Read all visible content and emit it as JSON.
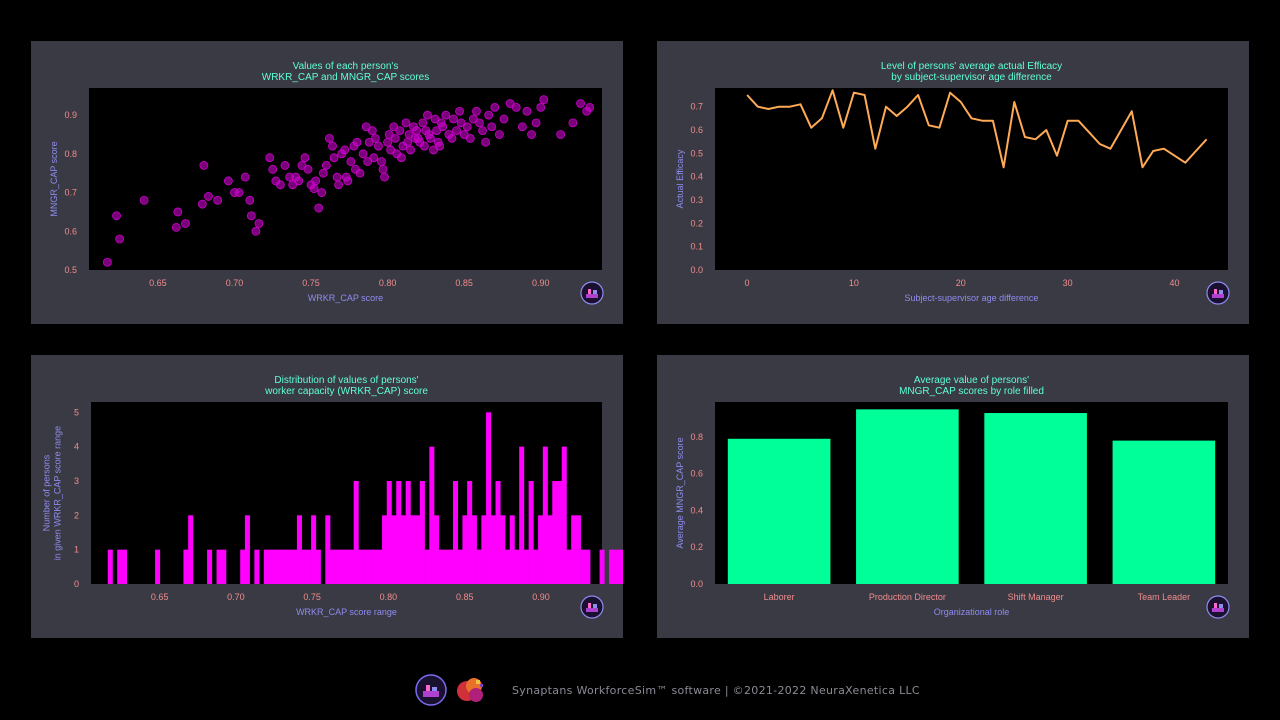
{
  "colors": {
    "panel_bg": "#3a3a44",
    "plot_bg": "#000000",
    "title": "#5fffd7",
    "axis_label": "#8f8cf0",
    "tick": "#f08c8c",
    "scatter": "#cc00cc",
    "line": "#ffaa55",
    "hist": "#ff00ff",
    "bar": "#00ff99"
  },
  "footer": {
    "text": "Synaptans WorkforceSim™ software | ©2021-2022 NeuraXenetica LLC",
    "icons": [
      "synaptans-logo-icon",
      "neuraxenetica-logo-icon"
    ]
  },
  "chart_data": [
    {
      "type": "scatter",
      "title": "Values of each person's\nWRKR_CAP and MNGR_CAP scores",
      "xlabel": "WRKR_CAP score",
      "ylabel": "MNGR_CAP score",
      "xlim": [
        0.605,
        0.94
      ],
      "ylim": [
        0.5,
        0.97
      ],
      "xticks": [
        0.65,
        0.7,
        0.75,
        0.8,
        0.85,
        0.9
      ],
      "yticks": [
        0.5,
        0.6,
        0.7,
        0.8,
        0.9
      ],
      "x": [
        0.617,
        0.623,
        0.625,
        0.641,
        0.662,
        0.663,
        0.668,
        0.679,
        0.68,
        0.683,
        0.689,
        0.696,
        0.7,
        0.703,
        0.707,
        0.71,
        0.711,
        0.714,
        0.716,
        0.723,
        0.725,
        0.727,
        0.73,
        0.733,
        0.736,
        0.738,
        0.74,
        0.742,
        0.744,
        0.746,
        0.748,
        0.75,
        0.752,
        0.753,
        0.755,
        0.757,
        0.758,
        0.76,
        0.762,
        0.764,
        0.765,
        0.767,
        0.768,
        0.77,
        0.772,
        0.773,
        0.774,
        0.776,
        0.778,
        0.779,
        0.78,
        0.782,
        0.784,
        0.786,
        0.787,
        0.788,
        0.79,
        0.791,
        0.792,
        0.794,
        0.796,
        0.797,
        0.798,
        0.8,
        0.801,
        0.802,
        0.804,
        0.805,
        0.806,
        0.808,
        0.809,
        0.81,
        0.812,
        0.813,
        0.814,
        0.815,
        0.817,
        0.818,
        0.819,
        0.82,
        0.821,
        0.823,
        0.824,
        0.825,
        0.826,
        0.827,
        0.828,
        0.83,
        0.831,
        0.832,
        0.833,
        0.834,
        0.835,
        0.836,
        0.838,
        0.84,
        0.842,
        0.843,
        0.845,
        0.847,
        0.848,
        0.85,
        0.852,
        0.854,
        0.856,
        0.858,
        0.86,
        0.862,
        0.864,
        0.866,
        0.868,
        0.87,
        0.873,
        0.876,
        0.88,
        0.884,
        0.888,
        0.891,
        0.894,
        0.897,
        0.9,
        0.902,
        0.913,
        0.921,
        0.926,
        0.93,
        0.932
      ],
      "y": [
        0.52,
        0.64,
        0.58,
        0.68,
        0.61,
        0.65,
        0.62,
        0.67,
        0.77,
        0.69,
        0.68,
        0.73,
        0.7,
        0.7,
        0.74,
        0.68,
        0.64,
        0.6,
        0.62,
        0.79,
        0.76,
        0.73,
        0.72,
        0.77,
        0.74,
        0.72,
        0.74,
        0.73,
        0.77,
        0.79,
        0.76,
        0.72,
        0.71,
        0.73,
        0.66,
        0.7,
        0.75,
        0.77,
        0.84,
        0.82,
        0.79,
        0.74,
        0.72,
        0.8,
        0.81,
        0.74,
        0.73,
        0.78,
        0.82,
        0.76,
        0.83,
        0.75,
        0.8,
        0.87,
        0.78,
        0.83,
        0.86,
        0.79,
        0.84,
        0.82,
        0.78,
        0.76,
        0.74,
        0.83,
        0.85,
        0.81,
        0.87,
        0.84,
        0.8,
        0.86,
        0.79,
        0.82,
        0.88,
        0.83,
        0.85,
        0.81,
        0.87,
        0.84,
        0.86,
        0.84,
        0.83,
        0.88,
        0.82,
        0.86,
        0.9,
        0.85,
        0.84,
        0.81,
        0.89,
        0.86,
        0.83,
        0.82,
        0.88,
        0.87,
        0.9,
        0.85,
        0.84,
        0.89,
        0.86,
        0.91,
        0.88,
        0.85,
        0.87,
        0.84,
        0.89,
        0.91,
        0.88,
        0.86,
        0.83,
        0.9,
        0.87,
        0.92,
        0.85,
        0.89,
        0.93,
        0.92,
        0.87,
        0.91,
        0.85,
        0.88,
        0.92,
        0.94,
        0.85,
        0.88,
        0.93,
        0.91,
        0.92
      ]
    },
    {
      "type": "line",
      "title": "Level of persons' average actual Efficacy\nby subject-supervisor age difference",
      "xlabel": "Subject-supervisor age difference",
      "ylabel": "Actual Efficacy",
      "xlim": [
        -3,
        45
      ],
      "ylim": [
        0,
        0.78
      ],
      "xticks": [
        0,
        10,
        20,
        30,
        40
      ],
      "yticks": [
        0.0,
        0.1,
        0.2,
        0.3,
        0.4,
        0.5,
        0.6,
        0.7
      ],
      "x": [
        0,
        1,
        2,
        3,
        4,
        5,
        6,
        7,
        8,
        9,
        10,
        11,
        12,
        13,
        14,
        15,
        16,
        17,
        18,
        19,
        20,
        21,
        22,
        23,
        24,
        25,
        26,
        27,
        28,
        29,
        30,
        31,
        32,
        33,
        34,
        35,
        36,
        37,
        38,
        39,
        40,
        41,
        42,
        43
      ],
      "y": [
        0.75,
        0.7,
        0.69,
        0.7,
        0.7,
        0.71,
        0.61,
        0.65,
        0.77,
        0.61,
        0.76,
        0.75,
        0.52,
        0.7,
        0.66,
        0.7,
        0.75,
        0.62,
        0.61,
        0.76,
        0.72,
        0.65,
        0.64,
        0.64,
        0.44,
        0.72,
        0.57,
        0.56,
        0.6,
        0.49,
        0.64,
        0.64,
        0.59,
        0.54,
        0.52,
        0.6,
        0.68,
        0.44,
        0.51,
        0.52,
        0.49,
        0.46,
        0.51,
        0.56
      ]
    },
    {
      "type": "bar",
      "subtype": "histogram",
      "title": "Distribution of values of persons'\nworker capacity (WRKR_CAP) score",
      "xlabel": "WRKR_CAP score range",
      "ylabel": "Number of persons\nin given WRKR_CAP score range",
      "xlim": [
        0.605,
        0.94
      ],
      "ylim": [
        0,
        5.3
      ],
      "xticks": [
        0.65,
        0.7,
        0.75,
        0.8,
        0.85,
        0.9
      ],
      "yticks": [
        0,
        1,
        2,
        3,
        4,
        5
      ],
      "bin_width": 0.0031,
      "bins_start": 0.616,
      "counts": [
        1,
        0,
        1,
        1,
        0,
        0,
        0,
        0,
        0,
        0,
        1,
        0,
        0,
        0,
        0,
        0,
        1,
        2,
        0,
        0,
        0,
        1,
        0,
        1,
        1,
        0,
        0,
        0,
        1,
        2,
        0,
        1,
        0,
        1,
        1,
        1,
        1,
        1,
        1,
        1,
        2,
        1,
        1,
        2,
        1,
        0,
        2,
        1,
        1,
        1,
        1,
        1,
        3,
        1,
        1,
        1,
        1,
        1,
        2,
        3,
        2,
        3,
        2,
        3,
        2,
        2,
        3,
        1,
        4,
        2,
        1,
        1,
        1,
        3,
        1,
        2,
        3,
        2,
        1,
        2,
        5,
        2,
        3,
        2,
        1,
        2,
        1,
        4,
        1,
        3,
        1,
        2,
        4,
        2,
        3,
        3,
        4,
        1,
        2,
        2,
        1,
        1,
        0,
        0,
        1,
        0,
        1,
        1,
        1,
        1,
        1,
        1,
        1,
        1,
        0,
        1,
        1,
        1,
        1,
        2,
        0,
        0,
        0,
        0,
        0,
        0,
        1,
        0,
        0,
        0,
        0,
        1,
        0,
        0,
        0,
        0,
        1,
        0,
        0,
        0,
        2
      ],
      "values_note": ""
    },
    {
      "type": "bar",
      "title": "Average value of persons'\nMNGR_CAP scores by role filled",
      "xlabel": "Organizational role",
      "ylabel": "Average MNGR_CAP score",
      "ylim": [
        0,
        0.99
      ],
      "yticks": [
        0.0,
        0.2,
        0.4,
        0.6,
        0.8
      ],
      "categories": [
        "Laborer",
        "Production Director",
        "Shift Manager",
        "Team Leader"
      ],
      "values": [
        0.79,
        0.95,
        0.93,
        0.78
      ]
    }
  ]
}
